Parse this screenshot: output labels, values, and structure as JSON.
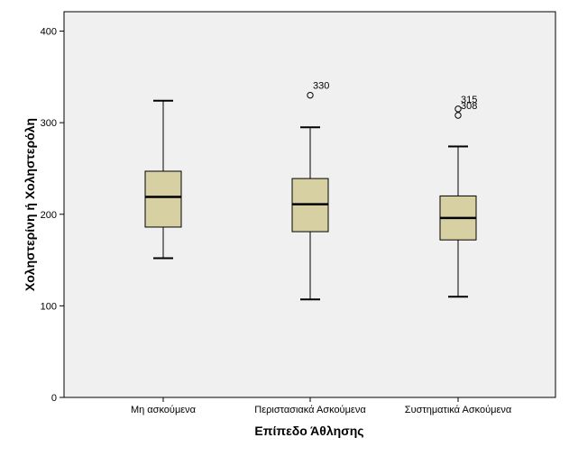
{
  "chart_data": {
    "type": "boxplot",
    "title": "",
    "xlabel": "Επίπεδο Άθλησης",
    "ylabel": "Χοληστερίνη ή Χοληστερόλη",
    "ylim": [
      0,
      410
    ],
    "yticks": [
      0,
      100,
      200,
      300,
      400
    ],
    "grid": false,
    "colors": {
      "plot_background": "#f0f0f0",
      "box_fill": "#d7d0a3",
      "stroke": "#000000"
    },
    "categories": [
      "Μη ασκούμενα",
      "Περιστασιακά Ασκούμενα",
      "Συστηματικά Ασκούμενα"
    ],
    "boxes": [
      {
        "category": "Μη ασκούμενα",
        "min": 152,
        "q1": 186,
        "median": 219,
        "q3": 247,
        "max": 324,
        "outliers": []
      },
      {
        "category": "Περιστασιακά Ασκούμενα",
        "min": 107,
        "q1": 181,
        "median": 211,
        "q3": 239,
        "max": 295,
        "outliers": [
          {
            "value": 330,
            "label": "330"
          }
        ]
      },
      {
        "category": "Συστηματικά Ασκούμενα",
        "min": 110,
        "q1": 172,
        "median": 196,
        "q3": 220,
        "max": 274,
        "outliers": [
          {
            "value": 315,
            "label": "315"
          },
          {
            "value": 308,
            "label": "308"
          }
        ]
      }
    ]
  }
}
